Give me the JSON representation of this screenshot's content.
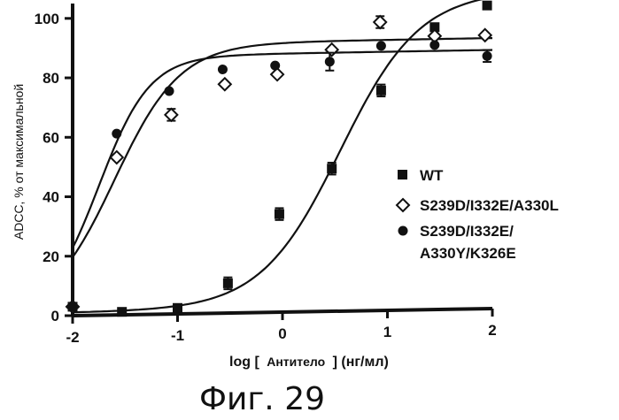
{
  "figure_caption": "Фиг. 29",
  "colors": {
    "ink": "#111111",
    "background": "#ffffff"
  },
  "chart_data": {
    "type": "scatter",
    "title": "",
    "ylabel": "ADCC, % от максимальной",
    "xlabel": {
      "prefix": "log [",
      "antibody": "Антитело",
      "suffix": "] (нг/мл)"
    },
    "xlim": [
      -2,
      2
    ],
    "ylim": [
      0,
      105
    ],
    "xticks": [
      -2,
      -1,
      0,
      1,
      2
    ],
    "yticks": [
      0,
      20,
      40,
      60,
      80,
      100
    ],
    "legend_position": "right",
    "series": [
      {
        "name": "WT",
        "marker": "square-filled",
        "x": [
          -2.0,
          -1.53,
          -1.0,
          -0.52,
          -0.03,
          0.47,
          0.94,
          1.45,
          1.95
        ],
        "y": [
          3,
          1,
          2,
          10,
          33,
          48,
          74,
          95,
          102
        ],
        "err": [
          0,
          0,
          1,
          2,
          2,
          2,
          2,
          1,
          0
        ],
        "fit": {
          "model": "4PL",
          "bottom": 1,
          "top": 107,
          "log_ec50": 0.55,
          "hill": 1.15
        }
      },
      {
        "name": "S239D/I332E/A330L",
        "marker": "diamond-open",
        "x": [
          -2.0,
          -1.58,
          -1.06,
          -0.55,
          -0.05,
          0.47,
          0.93,
          1.45,
          1.93
        ],
        "y": [
          3,
          53,
          67,
          77,
          80,
          88,
          97,
          92,
          92
        ],
        "err": [
          0,
          0,
          2,
          0,
          0,
          0,
          2,
          0,
          0
        ],
        "fit": {
          "model": "4PL",
          "bottom": 0,
          "top": 91,
          "log_ec50": -1.6,
          "hill": 1.4
        }
      },
      {
        "name_lines": [
          "S239D/I332E/",
          "A330Y/K326E"
        ],
        "marker": "circle-filled",
        "x": [
          -2.0,
          -1.58,
          -1.08,
          -0.57,
          -0.07,
          0.45,
          0.94,
          1.45,
          1.95
        ],
        "y": [
          3,
          61,
          75,
          82,
          83,
          84,
          89,
          89,
          85
        ],
        "err": [
          0,
          0,
          0,
          0,
          0,
          3,
          0,
          0,
          2
        ],
        "fit": {
          "model": "4PL",
          "bottom": 0,
          "top": 87,
          "log_ec50": -1.75,
          "hill": 1.8
        }
      }
    ]
  }
}
